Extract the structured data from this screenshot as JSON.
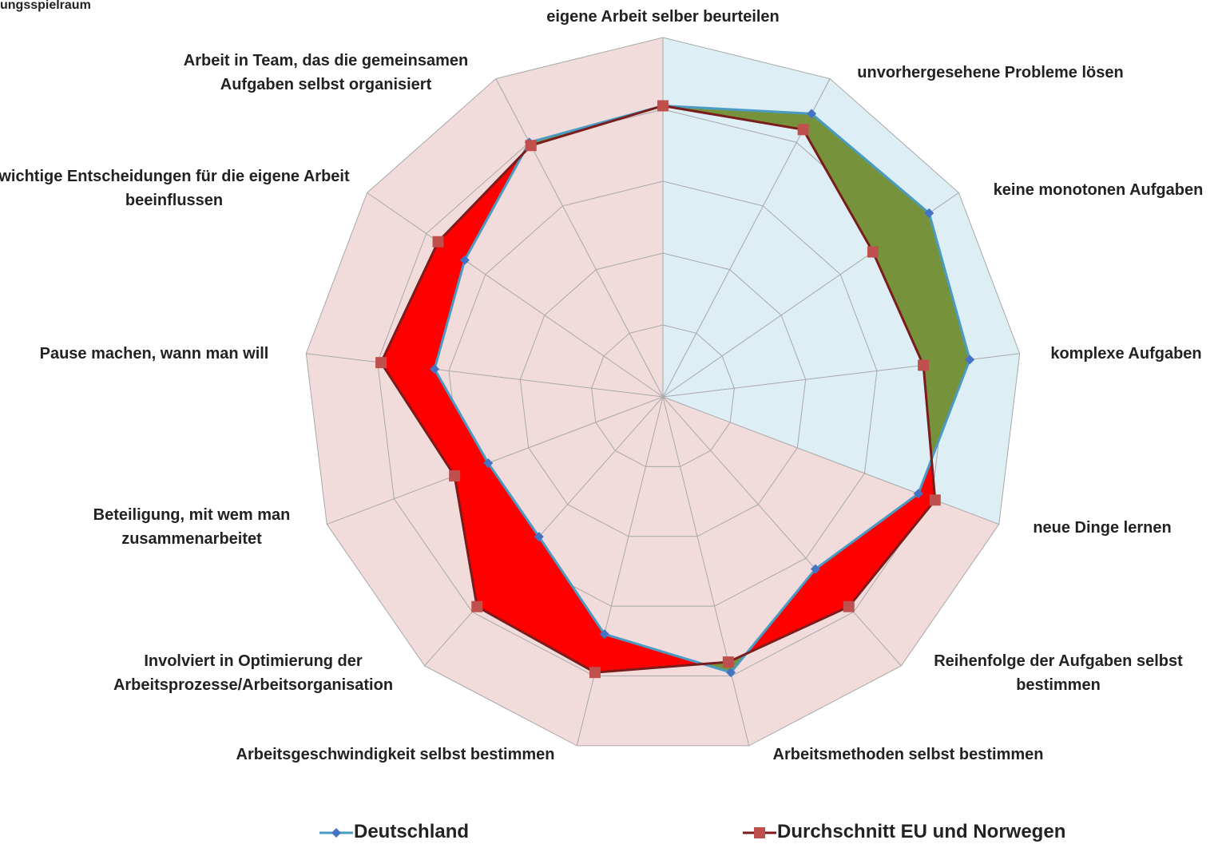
{
  "chart_data": {
    "type": "radar",
    "title": "ungsspielraum",
    "categories": [
      "eigene Arbeit selber beurteilen",
      "unvorhergesehene Probleme lösen",
      "keine monotonen Aufgaben",
      "komplexe Aufgaben",
      "neue Dinge lernen",
      "Reihenfolge der Aufgaben selbst bestimmen",
      "Arbeitsmethoden selbst bestimmen",
      "Arbeitsgeschwindigkeit selbst bestimmen",
      "Involviert in Optimierung der Arbeitsprozesse/Arbeitsorganisation",
      "Beteiligung, mit wem man zusammenarbeitet",
      "Pause machen, wann man will",
      "wichtige Entscheidungen für die eigene Arbeit beeinflussen",
      "Arbeit in Team, das die gemeinsamen Aufgaben selbst organisiert"
    ],
    "series": [
      {
        "name": "Deutschland",
        "color": "#4a9bc4",
        "marker_color": "#4472c4",
        "values": [
          81,
          89,
          90,
          86,
          76,
          64,
          79,
          68,
          52,
          52,
          64,
          67,
          80
        ]
      },
      {
        "name": "Durchschnitt EU und Norwegen",
        "color": "#7a1c1c",
        "marker_color": "#c0504d",
        "values": [
          81,
          84,
          71,
          73,
          81,
          78,
          76,
          79,
          78,
          62,
          79,
          76,
          79
        ]
      }
    ],
    "rlim": [
      0,
      100
    ],
    "rticks": [
      0,
      20,
      40,
      60,
      80,
      100
    ],
    "above_color": "#76933c",
    "below_color": "#ff0000",
    "sector_colors": [
      "#ddeef5",
      "#f2dcdb"
    ],
    "legend": "bottom"
  }
}
